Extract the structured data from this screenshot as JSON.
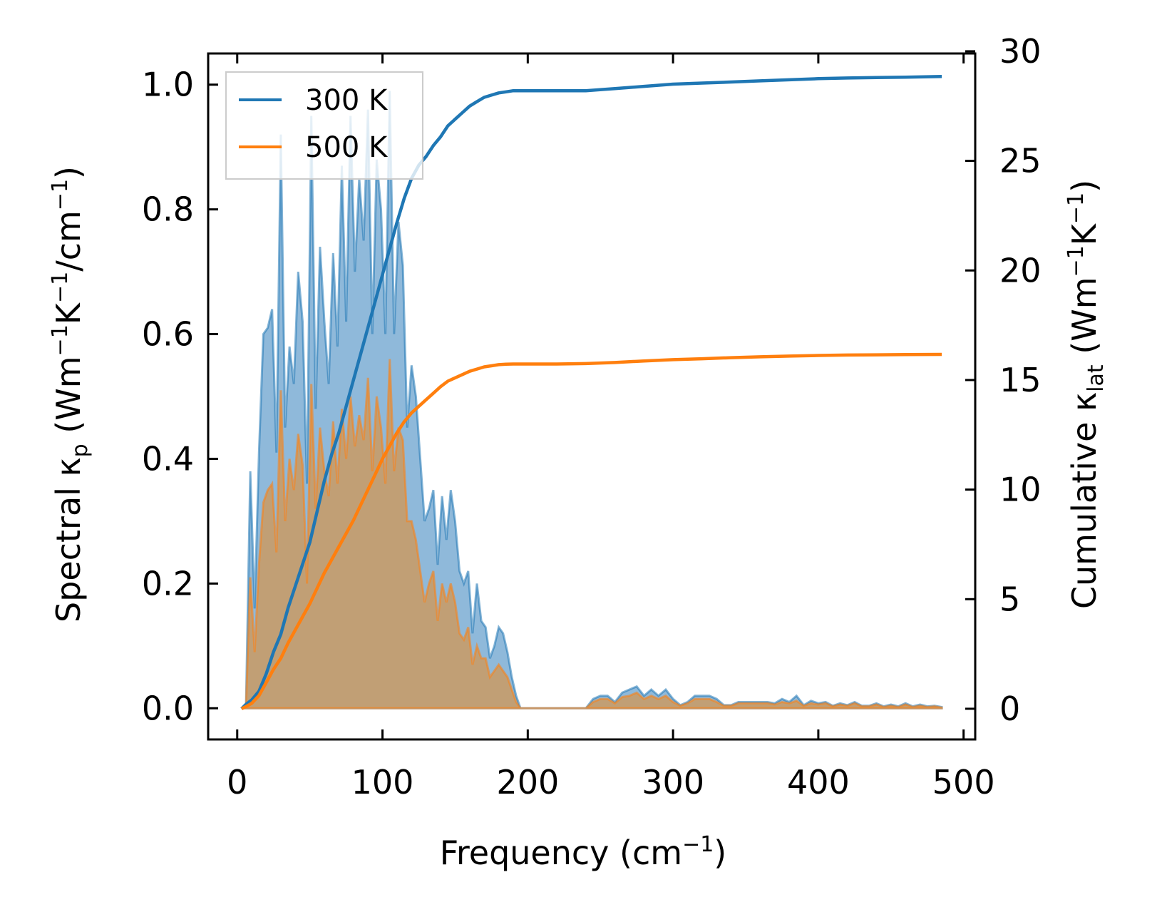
{
  "chart_data": {
    "type": "area",
    "xlabel": {
      "main": "Frequency (cm",
      "sup": "−1",
      "close": ")"
    },
    "ylabel_left": {
      "p1": "Spectral κ",
      "sub": "p",
      "p2": " (Wm",
      "sup1": "−1",
      "p3": "K",
      "sup2": "−1",
      "p4": "/cm",
      "sup3": "−1",
      "p5": ")"
    },
    "ylabel_right": {
      "p1": "Cumulative κ",
      "sub": "lat",
      "p2": " (Wm",
      "sup1": "−1",
      "p3": "K",
      "sup2": "−1",
      "p4": ")"
    },
    "xlim": [
      -20,
      508
    ],
    "ylim_left": [
      -0.05,
      1.05
    ],
    "ylim_right": [
      -1.4,
      29.9
    ],
    "xticks": [
      0,
      100,
      200,
      300,
      400,
      500
    ],
    "yticks_left": [
      0.0,
      0.2,
      0.4,
      0.6,
      0.8,
      1.0
    ],
    "yticks_left_labels": [
      "0.0",
      "0.2",
      "0.4",
      "0.6",
      "0.8",
      "1.0"
    ],
    "yticks_right": [
      0,
      5,
      10,
      15,
      20,
      25,
      30
    ],
    "legend": {
      "position": "upper-left"
    },
    "series": [
      {
        "name": "300 K",
        "color": "#1f77b4",
        "fill": "#8fb9da",
        "spectral": {
          "x": [
            3,
            6,
            9,
            12,
            15,
            18,
            21,
            24,
            27,
            30,
            33,
            36,
            39,
            42,
            45,
            48,
            51,
            54,
            57,
            60,
            63,
            66,
            69,
            72,
            75,
            78,
            81,
            84,
            87,
            90,
            93,
            96,
            99,
            102,
            105,
            108,
            111,
            114,
            117,
            120,
            123,
            126,
            129,
            132,
            135,
            138,
            141,
            144,
            147,
            150,
            153,
            156,
            159,
            162,
            165,
            168,
            171,
            174,
            177,
            180,
            183,
            186,
            189,
            192,
            195,
            200,
            230,
            235,
            240,
            245,
            250,
            255,
            260,
            265,
            270,
            275,
            280,
            285,
            290,
            295,
            300,
            305,
            310,
            315,
            320,
            325,
            330,
            335,
            340,
            345,
            350,
            355,
            360,
            365,
            370,
            375,
            380,
            385,
            390,
            395,
            400,
            405,
            410,
            415,
            420,
            425,
            430,
            435,
            440,
            445,
            450,
            455,
            460,
            465,
            470,
            475,
            480,
            485
          ],
          "y": [
            0.0,
            0.0,
            0.38,
            0.16,
            0.41,
            0.6,
            0.61,
            0.64,
            0.41,
            0.92,
            0.45,
            0.58,
            0.52,
            0.7,
            0.62,
            0.36,
            0.95,
            0.48,
            0.74,
            0.62,
            0.52,
            0.73,
            0.58,
            0.87,
            0.62,
            0.95,
            0.7,
            0.85,
            0.75,
            0.96,
            0.6,
            0.88,
            0.8,
            0.6,
            0.99,
            0.6,
            0.78,
            0.71,
            0.45,
            0.55,
            0.5,
            0.4,
            0.3,
            0.32,
            0.35,
            0.23,
            0.34,
            0.27,
            0.35,
            0.3,
            0.22,
            0.2,
            0.22,
            0.12,
            0.2,
            0.14,
            0.13,
            0.08,
            0.1,
            0.13,
            0.12,
            0.09,
            0.05,
            0.02,
            0.0,
            0.0,
            0.0,
            0.0,
            0.0,
            0.015,
            0.02,
            0.02,
            0.01,
            0.025,
            0.03,
            0.035,
            0.02,
            0.03,
            0.02,
            0.03,
            0.015,
            0.005,
            0.01,
            0.02,
            0.02,
            0.02,
            0.015,
            0.005,
            0.005,
            0.01,
            0.01,
            0.01,
            0.01,
            0.01,
            0.008,
            0.015,
            0.01,
            0.02,
            0.005,
            0.012,
            0.008,
            0.01,
            0.004,
            0.008,
            0.005,
            0.01,
            0.004,
            0.004,
            0.008,
            0.003,
            0.006,
            0.003,
            0.008,
            0.003,
            0.006,
            0.003,
            0.004,
            0.002
          ]
        },
        "cumulative": {
          "x": [
            3,
            6,
            10,
            15,
            20,
            25,
            30,
            35,
            40,
            45,
            50,
            55,
            60,
            65,
            70,
            75,
            80,
            85,
            90,
            95,
            100,
            105,
            110,
            115,
            120,
            125,
            130,
            135,
            140,
            145,
            150,
            155,
            160,
            165,
            170,
            175,
            180,
            185,
            190,
            200,
            220,
            240,
            260,
            280,
            300,
            320,
            340,
            360,
            380,
            400,
            420,
            440,
            460,
            485
          ],
          "y": [
            0,
            0.2,
            0.4,
            0.8,
            1.6,
            2.6,
            3.4,
            4.6,
            5.6,
            6.6,
            7.6,
            9.0,
            10.4,
            11.6,
            12.6,
            13.8,
            15.0,
            16.2,
            17.4,
            18.6,
            19.8,
            21.0,
            22.2,
            23.3,
            24.2,
            24.8,
            25.2,
            25.7,
            26.1,
            26.6,
            26.9,
            27.2,
            27.5,
            27.7,
            27.9,
            28.0,
            28.1,
            28.15,
            28.2,
            28.2,
            28.2,
            28.2,
            28.3,
            28.4,
            28.5,
            28.55,
            28.6,
            28.65,
            28.7,
            28.75,
            28.78,
            28.8,
            28.82,
            28.85
          ]
        }
      },
      {
        "name": "500 K",
        "color": "#ff7f0e",
        "fill": "#c69c6d",
        "spectral": {
          "x": [
            3,
            6,
            9,
            12,
            15,
            18,
            21,
            24,
            27,
            30,
            33,
            36,
            39,
            42,
            45,
            48,
            51,
            54,
            57,
            60,
            63,
            66,
            69,
            72,
            75,
            78,
            81,
            84,
            87,
            90,
            93,
            96,
            99,
            102,
            105,
            108,
            111,
            114,
            117,
            120,
            123,
            126,
            129,
            132,
            135,
            138,
            141,
            144,
            147,
            150,
            153,
            156,
            159,
            162,
            165,
            168,
            171,
            174,
            177,
            180,
            183,
            186,
            189,
            192,
            195,
            200,
            230,
            235,
            240,
            245,
            250,
            255,
            260,
            265,
            270,
            275,
            280,
            285,
            290,
            295,
            300,
            305,
            310,
            315,
            320,
            325,
            330,
            335,
            340,
            345,
            350,
            355,
            360,
            365,
            370,
            375,
            380,
            385,
            390,
            395,
            400,
            405,
            410,
            415,
            420,
            425,
            430,
            435,
            440,
            445,
            450,
            455,
            460,
            465,
            470,
            475,
            480,
            485
          ],
          "y": [
            0.0,
            0.0,
            0.21,
            0.09,
            0.23,
            0.33,
            0.35,
            0.36,
            0.25,
            0.51,
            0.3,
            0.4,
            0.35,
            0.44,
            0.39,
            0.2,
            0.52,
            0.32,
            0.45,
            0.38,
            0.34,
            0.46,
            0.36,
            0.48,
            0.4,
            0.5,
            0.42,
            0.47,
            0.43,
            0.53,
            0.38,
            0.5,
            0.45,
            0.36,
            0.56,
            0.38,
            0.45,
            0.43,
            0.3,
            0.3,
            0.27,
            0.22,
            0.17,
            0.2,
            0.22,
            0.14,
            0.2,
            0.17,
            0.2,
            0.17,
            0.12,
            0.11,
            0.13,
            0.07,
            0.1,
            0.08,
            0.08,
            0.05,
            0.06,
            0.07,
            0.06,
            0.05,
            0.03,
            0.01,
            0.0,
            0.0,
            0.0,
            0.0,
            0.0,
            0.01,
            0.015,
            0.015,
            0.008,
            0.018,
            0.02,
            0.025,
            0.015,
            0.02,
            0.015,
            0.02,
            0.01,
            0.004,
            0.008,
            0.015,
            0.015,
            0.015,
            0.01,
            0.004,
            0.004,
            0.008,
            0.008,
            0.008,
            0.008,
            0.008,
            0.006,
            0.01,
            0.008,
            0.012,
            0.004,
            0.008,
            0.006,
            0.008,
            0.003,
            0.006,
            0.004,
            0.008,
            0.003,
            0.003,
            0.006,
            0.002,
            0.004,
            0.002,
            0.006,
            0.002,
            0.004,
            0.002,
            0.003,
            0.001
          ]
        },
        "cumulative": {
          "x": [
            3,
            6,
            10,
            15,
            20,
            25,
            30,
            35,
            40,
            45,
            50,
            55,
            60,
            65,
            70,
            75,
            80,
            85,
            90,
            95,
            100,
            105,
            110,
            115,
            120,
            125,
            130,
            135,
            140,
            145,
            150,
            155,
            160,
            165,
            170,
            175,
            180,
            185,
            190,
            200,
            220,
            240,
            260,
            280,
            300,
            320,
            340,
            360,
            380,
            400,
            420,
            440,
            460,
            485
          ],
          "y": [
            0,
            0.1,
            0.25,
            0.6,
            1.2,
            1.8,
            2.3,
            3.0,
            3.6,
            4.2,
            4.8,
            5.5,
            6.2,
            6.8,
            7.4,
            8.0,
            8.6,
            9.3,
            10.0,
            10.7,
            11.4,
            12.0,
            12.6,
            13.1,
            13.5,
            13.8,
            14.1,
            14.4,
            14.7,
            14.95,
            15.1,
            15.25,
            15.4,
            15.5,
            15.6,
            15.65,
            15.7,
            15.72,
            15.73,
            15.73,
            15.73,
            15.75,
            15.8,
            15.87,
            15.93,
            15.97,
            16.02,
            16.06,
            16.09,
            16.12,
            16.14,
            16.15,
            16.16,
            16.17
          ]
        }
      }
    ]
  }
}
